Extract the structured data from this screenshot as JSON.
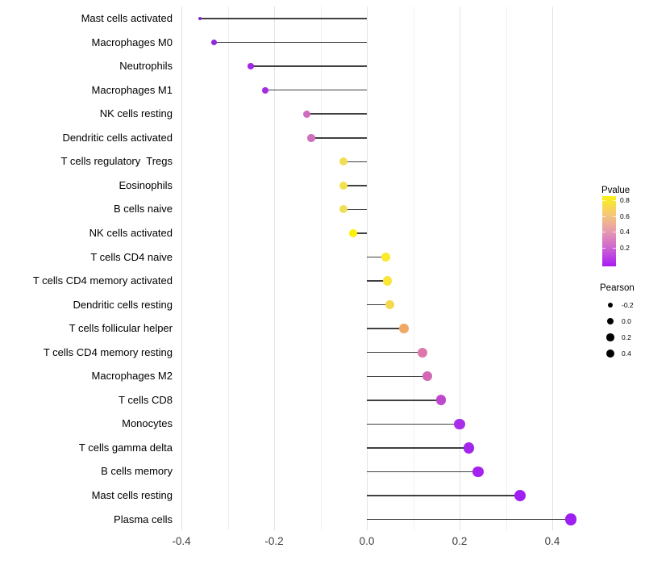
{
  "chart_data": {
    "type": "scatter",
    "subtype": "lollipop",
    "title": "",
    "xlabel": "",
    "ylabel": "",
    "xlim": [
      -0.44,
      0.48
    ],
    "grid": "on",
    "x_major_ticks": [
      "-0.4",
      "-0.2",
      "0.0",
      "0.2",
      "0.4"
    ],
    "x_major_values": [
      -0.4,
      -0.2,
      0.0,
      0.2,
      0.4
    ],
    "x_minor_values": [
      -0.3,
      -0.1,
      0.1,
      0.3
    ],
    "points": [
      {
        "label": "Mast cells activated",
        "pearson": -0.36,
        "pvalue": 0.02,
        "color": "#8526d3",
        "radius": 2.2
      },
      {
        "label": "Macrophages M0",
        "pearson": -0.33,
        "pvalue": 0.04,
        "color": "#9128dd",
        "radius": 3.4
      },
      {
        "label": "Neutrophils",
        "pearson": -0.25,
        "pvalue": 0.07,
        "color": "#a228e5",
        "radius": 3.8
      },
      {
        "label": "Macrophages M1",
        "pearson": -0.22,
        "pvalue": 0.08,
        "color": "#a32ce2",
        "radius": 4.0
      },
      {
        "label": "NK cells resting",
        "pearson": -0.13,
        "pvalue": 0.35,
        "color": "#cf6cbe",
        "radius": 4.7
      },
      {
        "label": "Dendritic cells activated",
        "pearson": -0.12,
        "pvalue": 0.34,
        "color": "#d06fbb",
        "radius": 4.8
      },
      {
        "label": "T cells regulatory  Tregs",
        "pearson": -0.05,
        "pvalue": 0.68,
        "color": "#f1df55",
        "radius": 5.0
      },
      {
        "label": "Eosinophils",
        "pearson": -0.05,
        "pvalue": 0.69,
        "color": "#f2e14e",
        "radius": 5.0
      },
      {
        "label": "B cells naive",
        "pearson": -0.05,
        "pvalue": 0.68,
        "color": "#f1de58",
        "radius": 5.0
      },
      {
        "label": "NK cells activated",
        "pearson": -0.03,
        "pvalue": 0.8,
        "color": "#fdf004",
        "radius": 5.1
      },
      {
        "label": "T cells CD4 naive",
        "pearson": 0.04,
        "pvalue": 0.77,
        "color": "#fbe92b",
        "radius": 5.5
      },
      {
        "label": "T cells CD4 memory activated",
        "pearson": 0.045,
        "pvalue": 0.74,
        "color": "#f9e636",
        "radius": 5.6
      },
      {
        "label": "Dendritic cells resting",
        "pearson": 0.05,
        "pvalue": 0.7,
        "color": "#f4d94e",
        "radius": 5.7
      },
      {
        "label": "T cells follicular helper",
        "pearson": 0.08,
        "pvalue": 0.52,
        "color": "#f0a965",
        "radius": 5.9
      },
      {
        "label": "T cells CD4 memory resting",
        "pearson": 0.12,
        "pvalue": 0.4,
        "color": "#dc77ad",
        "radius": 6.1
      },
      {
        "label": "Macrophages M2",
        "pearson": 0.13,
        "pvalue": 0.36,
        "color": "#d368b5",
        "radius": 6.2
      },
      {
        "label": "T cells CD8",
        "pearson": 0.16,
        "pvalue": 0.25,
        "color": "#bf47cf",
        "radius": 6.4
      },
      {
        "label": "Monocytes",
        "pearson": 0.2,
        "pvalue": 0.1,
        "color": "#a92ee7",
        "radius": 6.6
      },
      {
        "label": "T cells gamma delta",
        "pearson": 0.22,
        "pvalue": 0.07,
        "color": "#a326ea",
        "radius": 6.7
      },
      {
        "label": "B cells memory",
        "pearson": 0.24,
        "pvalue": 0.05,
        "color": "#a521f0",
        "radius": 6.9
      },
      {
        "label": "Mast cells resting",
        "pearson": 0.33,
        "pvalue": 0.03,
        "color": "#a01ff2",
        "radius": 7.1
      },
      {
        "label": "Plasma cells",
        "pearson": 0.44,
        "pvalue": 0.01,
        "color": "#9d1ff2",
        "radius": 7.3
      }
    ],
    "legend_pvalue": {
      "title": "Pvalue",
      "tick_labels": [
        "0.8",
        "0.6",
        "0.4",
        "0.2"
      ],
      "gradient_top_to_bottom": [
        "#fcf115",
        "#f5c877",
        "#e79bb0",
        "#cd64d0",
        "#a81bf5"
      ]
    },
    "legend_pearson": {
      "title": "Pearson",
      "items": [
        {
          "label": "-0.2",
          "radius": 3.4
        },
        {
          "label": "0.0",
          "radius": 4.0
        },
        {
          "label": "0.2",
          "radius": 4.7
        },
        {
          "label": "0.4",
          "radius": 5.4
        }
      ]
    },
    "colors": {
      "stem": "#404040",
      "grid_major": "#e3e3e3",
      "grid_minor": "#f0f0f0",
      "axis_text": "#404040",
      "legend_dot": "#000000"
    }
  }
}
